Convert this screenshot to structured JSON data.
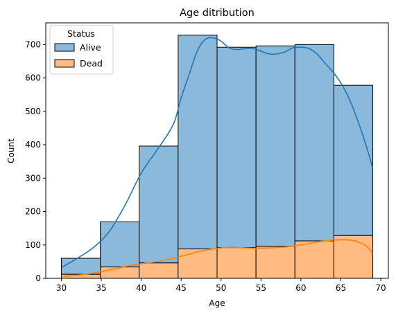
{
  "chart_data": {
    "type": "bar",
    "title": "Age ditribution",
    "xlabel": "Age",
    "ylabel": "Count",
    "xlim": [
      28.05,
      70.95
    ],
    "ylim": [
      0,
      765
    ],
    "xticks": [
      30,
      35,
      40,
      45,
      50,
      55,
      60,
      65,
      70
    ],
    "yticks": [
      0,
      100,
      200,
      300,
      400,
      500,
      600,
      700
    ],
    "stacked": true,
    "bin_edges": [
      30,
      34.875,
      39.75,
      44.625,
      49.5,
      54.375,
      59.25,
      64.125,
      69
    ],
    "series": [
      {
        "name": "Dead",
        "color": "#ffbb80",
        "edge": "#000000",
        "values": [
          12,
          34,
          46,
          88,
          92,
          96,
          112,
          128
        ],
        "kde_color": "#ff7f0e",
        "kde": [
          [
            30,
            5
          ],
          [
            33,
            12
          ],
          [
            36,
            25
          ],
          [
            39,
            40
          ],
          [
            42,
            50
          ],
          [
            45,
            66
          ],
          [
            48,
            84
          ],
          [
            51,
            93
          ],
          [
            54,
            90
          ],
          [
            57,
            92
          ],
          [
            60,
            100
          ],
          [
            63,
            112
          ],
          [
            66,
            115
          ],
          [
            68,
            100
          ],
          [
            69,
            74
          ]
        ]
      },
      {
        "name": "Alive",
        "color": "#8bb9db",
        "edge": "#000000",
        "values": [
          48,
          135,
          350,
          640,
          600,
          600,
          588,
          450
        ],
        "kde_color": "#1f77b4",
        "kde": [
          [
            30,
            32
          ],
          [
            32,
            60
          ],
          [
            34,
            92
          ],
          [
            36,
            140
          ],
          [
            38,
            220
          ],
          [
            40,
            315
          ],
          [
            42,
            385
          ],
          [
            44,
            460
          ],
          [
            45,
            540
          ],
          [
            46,
            610
          ],
          [
            47,
            680
          ],
          [
            48,
            715
          ],
          [
            49,
            720
          ],
          [
            50,
            710
          ],
          [
            51,
            690
          ],
          [
            52,
            685
          ],
          [
            53,
            688
          ],
          [
            54,
            688
          ],
          [
            55,
            680
          ],
          [
            56,
            672
          ],
          [
            57,
            672
          ],
          [
            58,
            678
          ],
          [
            59,
            690
          ],
          [
            60,
            692
          ],
          [
            61,
            688
          ],
          [
            62,
            672
          ],
          [
            63,
            645
          ],
          [
            64,
            618
          ],
          [
            65,
            585
          ],
          [
            66,
            540
          ],
          [
            67,
            480
          ],
          [
            68,
            410
          ],
          [
            69,
            330
          ]
        ]
      }
    ],
    "legend": {
      "title": "Status",
      "placement": "top-left",
      "entries": [
        {
          "label": "Alive",
          "color": "#8bb9db"
        },
        {
          "label": "Dead",
          "color": "#ffbb80"
        }
      ]
    },
    "grid": false
  }
}
